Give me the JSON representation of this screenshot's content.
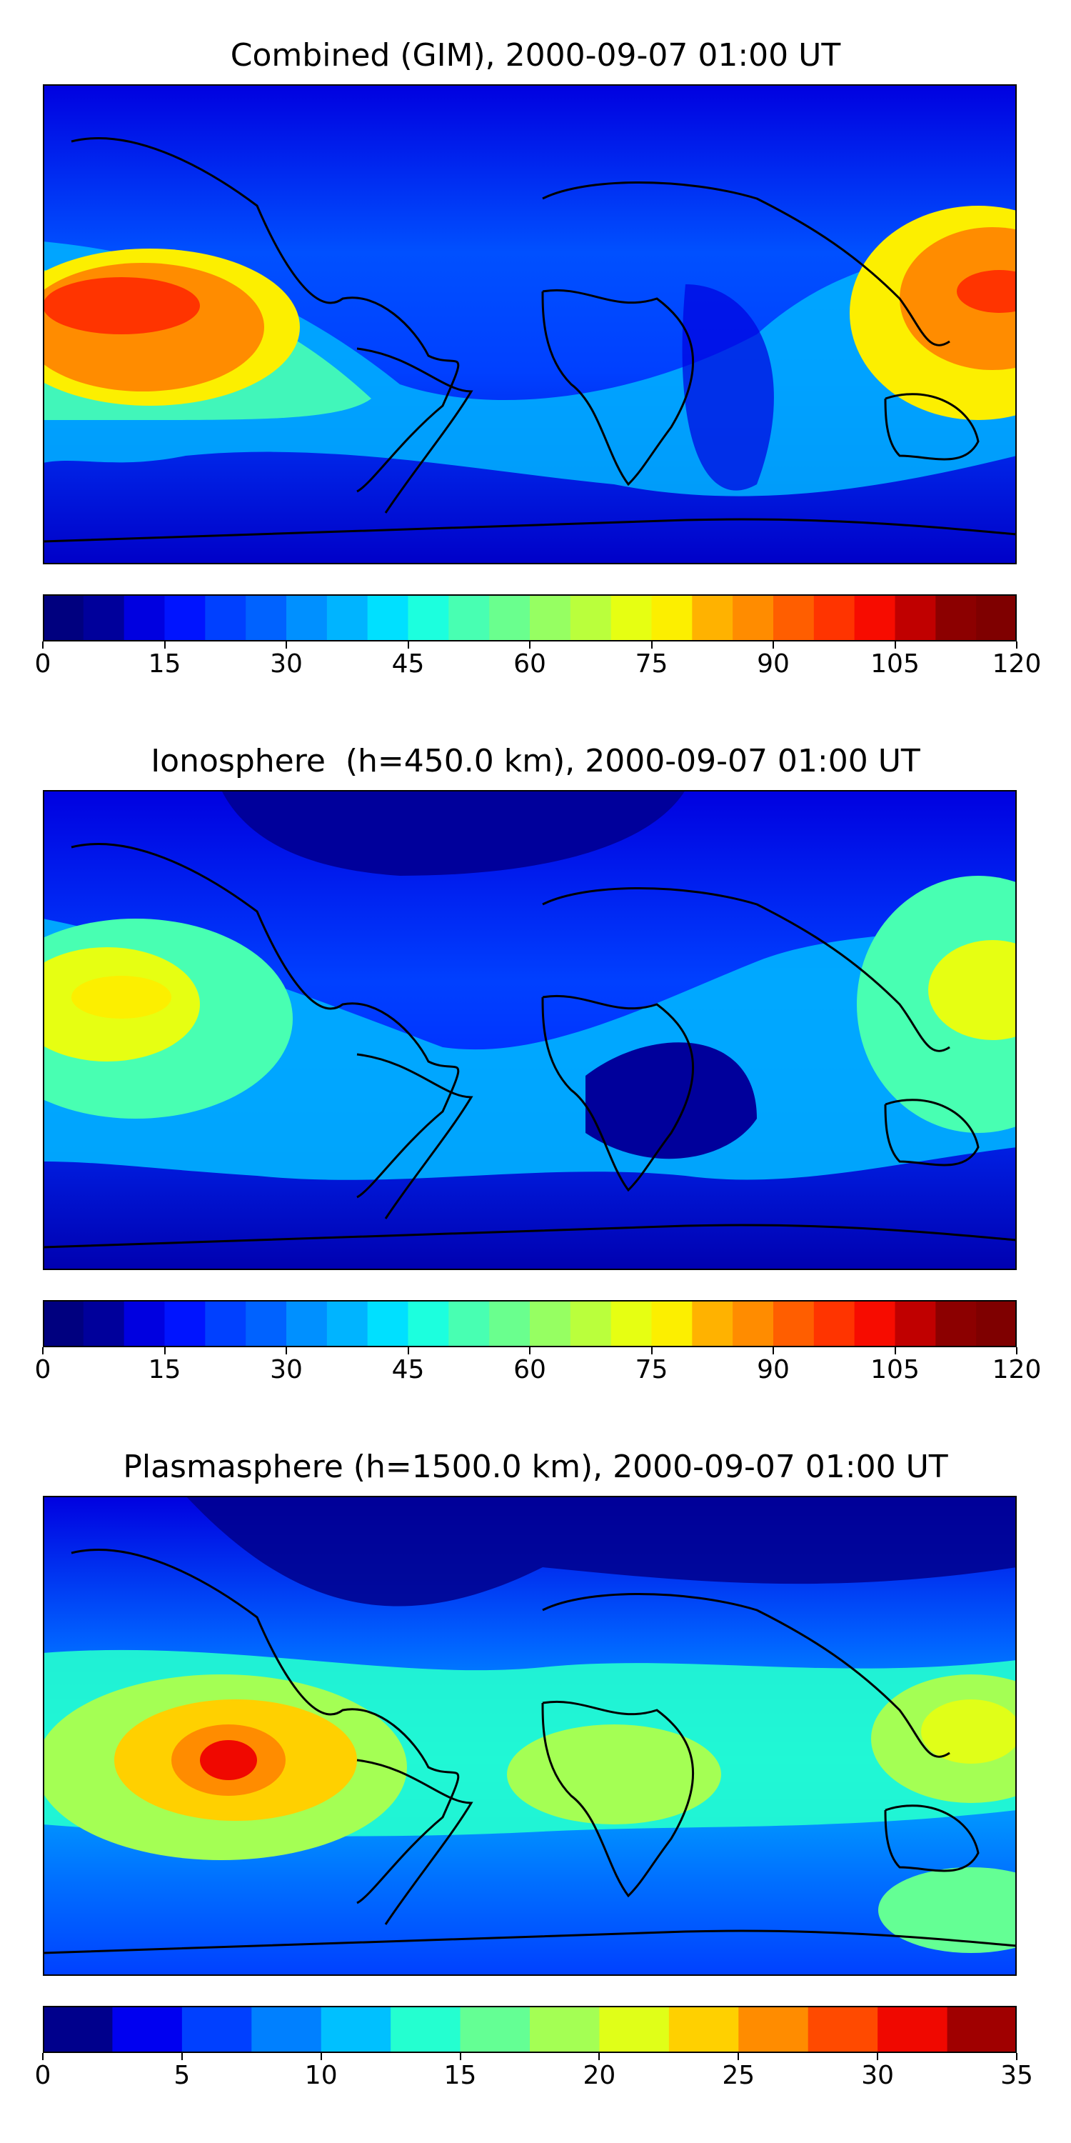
{
  "panels": [
    {
      "title": "Combined (GIM), 2000-09-07 01:00 UT",
      "colorbar": {
        "min": 0,
        "max": 120,
        "step": 5,
        "ticks": [
          "0",
          "15",
          "30",
          "45",
          "60",
          "75",
          "90",
          "105",
          "120"
        ],
        "colors": [
          "#00007f",
          "#00009b",
          "#0000e0",
          "#0014ff",
          "#0040ff",
          "#0062ff",
          "#0090ff",
          "#00b4ff",
          "#00e0ff",
          "#1cffde",
          "#48ffb2",
          "#6aff8e",
          "#96ff62",
          "#baff3c",
          "#e6ff12",
          "#fcef00",
          "#ffb200",
          "#ff8c00",
          "#ff5e00",
          "#ff3400",
          "#f70c00",
          "#c00000",
          "#8c0000",
          "#7f0000"
        ]
      },
      "description": "Peak values over central Pacific and western Pacific/Indonesia"
    },
    {
      "title": "Ionosphere  (h=450.0 km), 2000-09-07 01:00 UT",
      "colorbar": {
        "min": 0,
        "max": 120,
        "step": 5,
        "ticks": [
          "0",
          "15",
          "30",
          "45",
          "60",
          "75",
          "90",
          "105",
          "120"
        ],
        "colors": [
          "#00007f",
          "#00009b",
          "#0000e0",
          "#0014ff",
          "#0040ff",
          "#0062ff",
          "#0090ff",
          "#00b4ff",
          "#00e0ff",
          "#1cffde",
          "#48ffb2",
          "#6aff8e",
          "#96ff62",
          "#baff3c",
          "#e6ff12",
          "#fcef00",
          "#ffb200",
          "#ff8c00",
          "#ff5e00",
          "#ff3400",
          "#f70c00",
          "#c00000",
          "#8c0000",
          "#7f0000"
        ]
      }
    },
    {
      "title": "Plasmasphere (h=1500.0 km), 2000-09-07 01:00 UT",
      "colorbar": {
        "min": 0,
        "max": 35,
        "step": 2.5,
        "ticks": [
          "0",
          "5",
          "10",
          "15",
          "20",
          "25",
          "30",
          "35"
        ],
        "colors": [
          "#00008c",
          "#0000f0",
          "#0040ff",
          "#0080ff",
          "#00c0ff",
          "#24ffd0",
          "#64ff94",
          "#a4ff54",
          "#e0ff18",
          "#ffd000",
          "#ff8c00",
          "#ff4a00",
          "#f00800",
          "#a00000"
        ]
      }
    }
  ]
}
